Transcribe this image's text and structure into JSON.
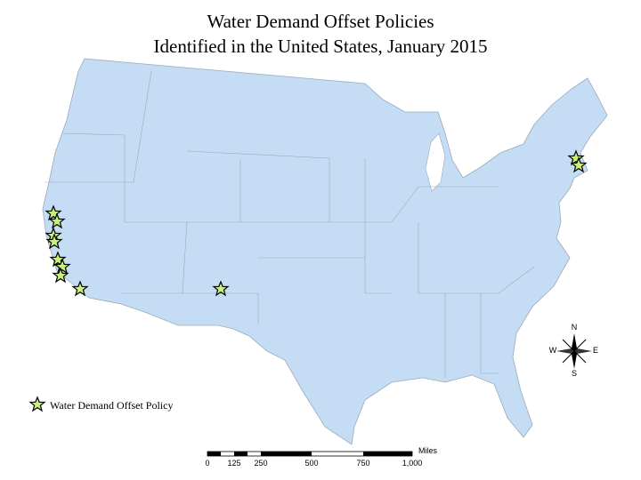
{
  "title": {
    "line1": "Water Demand Offset Policies",
    "line2": "Identified in the United States, January 2015"
  },
  "legend": {
    "label": "Water Demand Offset Policy"
  },
  "scale_bar": {
    "unit": "Miles",
    "labels": [
      "0",
      "125",
      "250",
      "500",
      "750",
      "1,000"
    ]
  },
  "compass": {
    "north": "N",
    "east": "E",
    "south": "S",
    "west": "W"
  }
}
